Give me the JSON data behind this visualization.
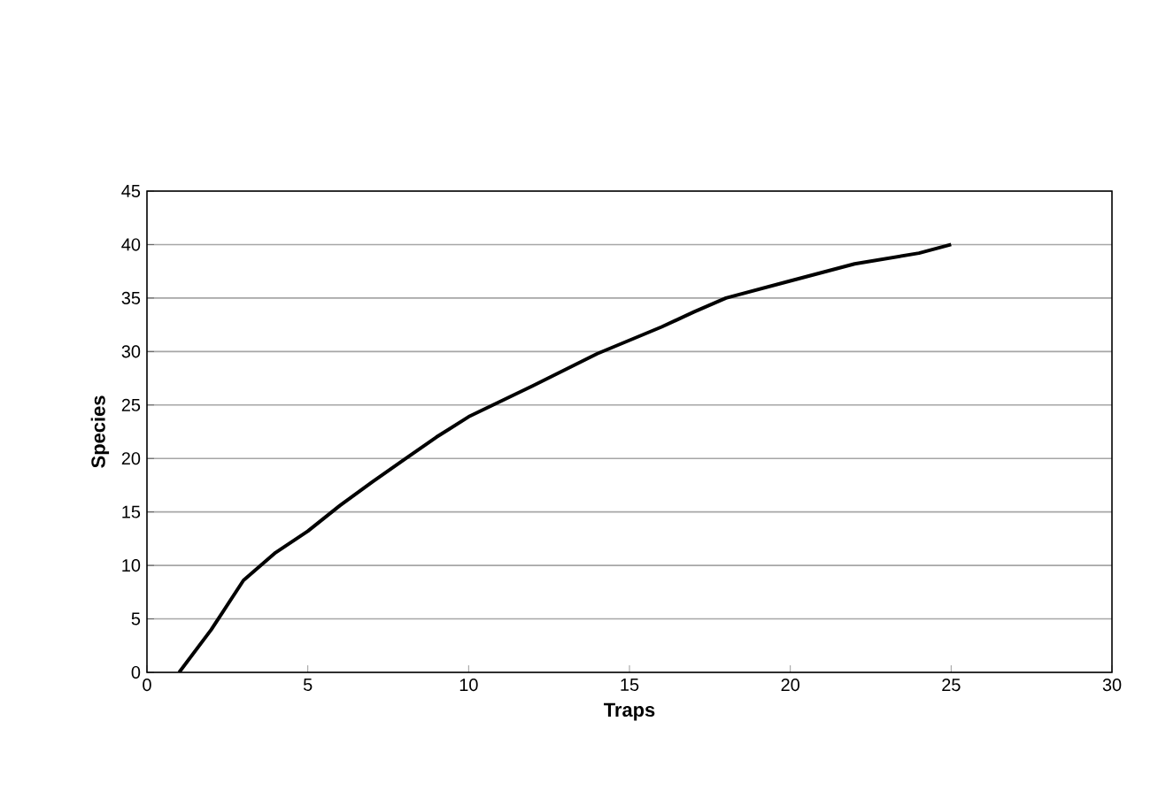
{
  "chart_data": {
    "type": "line",
    "xlabel": "Traps",
    "ylabel": "Species",
    "x": [
      1,
      2,
      3,
      4,
      5,
      6,
      7,
      8,
      9,
      10,
      12,
      14,
      16,
      17,
      18,
      20,
      22,
      24,
      25
    ],
    "series": [
      {
        "color": "#000000",
        "values": [
          0,
          4,
          8.6,
          11.2,
          13.2,
          15.6,
          17.8,
          19.9,
          22,
          23.9,
          26.8,
          29.8,
          32.3,
          33.7,
          35,
          36.6,
          38.2,
          39.2,
          40
        ]
      }
    ],
    "xlim": [
      0,
      30
    ],
    "ylim": [
      0,
      45
    ],
    "xticks": [
      0,
      5,
      10,
      15,
      20,
      25,
      30
    ],
    "yticks": [
      0,
      5,
      10,
      15,
      20,
      25,
      30,
      35,
      40,
      45
    ],
    "grid": "y",
    "marker": "none",
    "line_style": "solid"
  }
}
